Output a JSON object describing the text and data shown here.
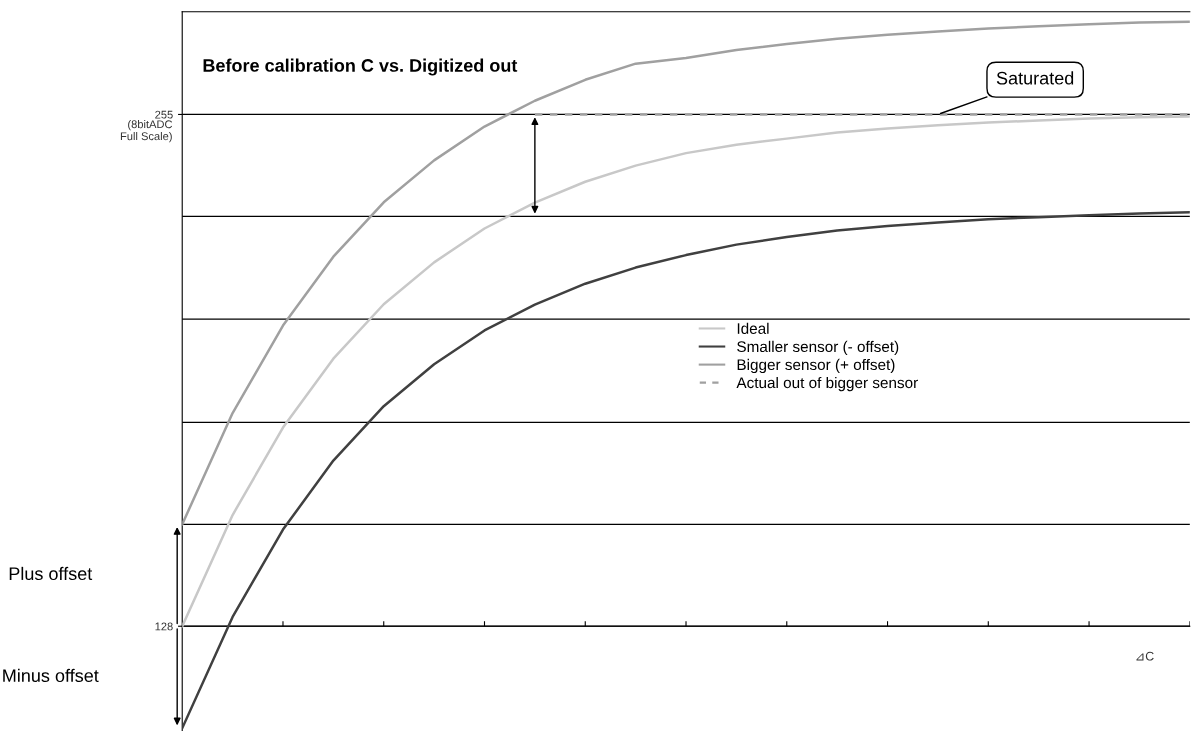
{
  "chart_data": {
    "type": "line",
    "title": "Before calibration C vs. Digitized out",
    "xlabel": "⊿C",
    "categories": [
      null,
      null,
      null,
      null,
      null,
      null,
      null,
      null,
      null,
      null,
      null,
      null,
      null,
      null,
      null,
      null,
      null,
      null,
      null,
      null,
      null
    ],
    "series": [
      {
        "name": "Ideal",
        "color": "#c8c8c8",
        "values": [
          128,
          155.6,
          177.3,
          194.4,
          207.9,
          218.3,
          226.7,
          233.1,
          238.3,
          242.3,
          245.4,
          247.5,
          249,
          250.5,
          251.5,
          252.3,
          253,
          253.5,
          254,
          254.3,
          254.5
        ]
      },
      {
        "name": "Smaller sensor (- offset)",
        "color": "#404040",
        "values": [
          102.7,
          130.3,
          152,
          169.1,
          182.6,
          193,
          201.4,
          207.8,
          213,
          217,
          220.1,
          222.7,
          224.6,
          226.2,
          227.3,
          228.2,
          229,
          229.5,
          230,
          230.4,
          230.7
        ]
      },
      {
        "name": "Bigger sensor (+ offset)",
        "color": "#a0a0a0",
        "values": [
          153.3,
          180.9,
          202.6,
          219.7,
          233.2,
          243.6,
          252,
          258.4,
          263.6,
          267.6,
          269,
          271,
          272.5,
          273.8,
          274.8,
          275.6,
          276.3,
          276.9,
          277.4,
          277.8,
          278
        ]
      },
      {
        "name": "Actual out of bigger sensor",
        "color": "#a0a0a0",
        "line_style": "dashed",
        "values": [
          null,
          null,
          null,
          null,
          null,
          null,
          null,
          255,
          255,
          255,
          255,
          255,
          255,
          255,
          255,
          255,
          255,
          255,
          255,
          255,
          255
        ]
      }
    ],
    "ylim": [
      102,
      280.5
    ],
    "yticks": [
      128,
      255
    ],
    "ref_lines": [
      {
        "axis": "y",
        "value": 153.3,
        "color": "#000000"
      },
      {
        "axis": "y",
        "value": 178.6,
        "color": "#000000"
      },
      {
        "axis": "y",
        "value": 204.2,
        "color": "#000000"
      },
      {
        "axis": "y",
        "value": 229.7,
        "color": "#000000"
      }
    ],
    "annotations": [
      "Saturated",
      "Plus offset",
      "Minus offset",
      "(8bitADC\nFull Scale)"
    ],
    "legend": "right",
    "grid": "y",
    "marker": "none",
    "line_style": "solid"
  }
}
